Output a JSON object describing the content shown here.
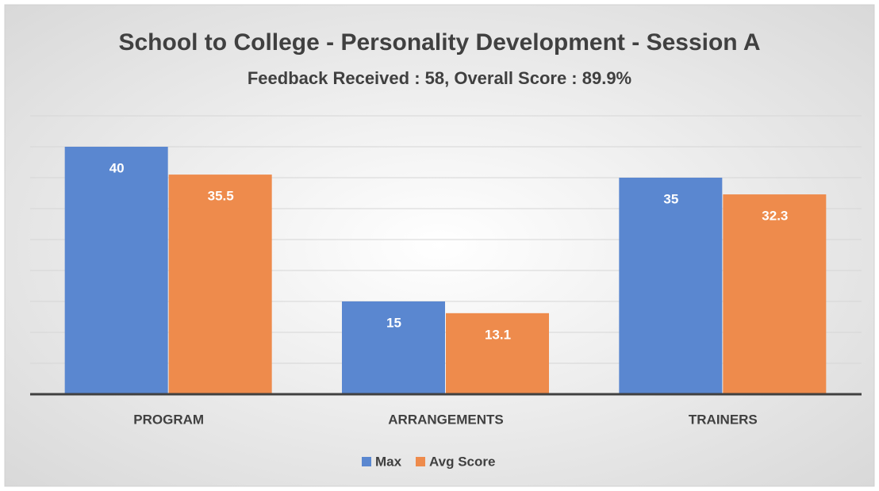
{
  "chart_data": {
    "type": "bar",
    "title": "School to College - Personality Development - Session A",
    "subtitle": "Feedback Received : 58, Overall Score : 89.9%",
    "categories": [
      "PROGRAM",
      "ARRANGEMENTS",
      "TRAINERS"
    ],
    "series": [
      {
        "name": "Max",
        "color": "#5a87d0",
        "values": [
          40,
          15,
          35
        ]
      },
      {
        "name": "Avg Score",
        "color": "#ee8b4c",
        "values": [
          35.5,
          13.1,
          32.3
        ]
      }
    ],
    "ylim": [
      0,
      45
    ],
    "yticks": [
      0,
      5,
      10,
      15,
      20,
      25,
      30,
      35,
      40,
      45
    ],
    "grid": true,
    "legend": "bottom"
  }
}
